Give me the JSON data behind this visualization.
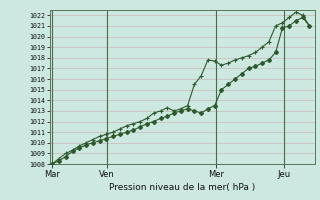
{
  "title": "Pression niveau de la mer( hPa )",
  "bg_color": "#cce8e0",
  "grid_color": "#c8b8b8",
  "line_color": "#2d5a2d",
  "ylim": [
    1008,
    1022.5
  ],
  "yticks": [
    1008,
    1009,
    1010,
    1011,
    1012,
    1013,
    1014,
    1015,
    1016,
    1017,
    1018,
    1019,
    1020,
    1021,
    1022
  ],
  "xtick_labels": [
    "Mar",
    "Ven",
    "Mer",
    "Jeu"
  ],
  "xtick_positions": [
    0.0,
    0.21,
    0.63,
    0.89
  ],
  "vline_positions": [
    0.0,
    0.21,
    0.63,
    0.89
  ],
  "series1_x": [
    0.0,
    0.025,
    0.052,
    0.078,
    0.104,
    0.13,
    0.156,
    0.182,
    0.208,
    0.234,
    0.26,
    0.286,
    0.312,
    0.338,
    0.364,
    0.39,
    0.416,
    0.442,
    0.468,
    0.494,
    0.52,
    0.546,
    0.572,
    0.598,
    0.624,
    0.65,
    0.676,
    0.702,
    0.728,
    0.754,
    0.78,
    0.806,
    0.832,
    0.858,
    0.884,
    0.91,
    0.936,
    0.962,
    0.988
  ],
  "series1_y": [
    1008.0,
    1008.3,
    1008.7,
    1009.2,
    1009.5,
    1009.8,
    1010.0,
    1010.2,
    1010.4,
    1010.6,
    1010.8,
    1011.0,
    1011.2,
    1011.5,
    1011.8,
    1012.0,
    1012.3,
    1012.5,
    1012.8,
    1013.0,
    1013.2,
    1013.0,
    1012.8,
    1013.2,
    1013.5,
    1015.0,
    1015.5,
    1016.0,
    1016.5,
    1017.0,
    1017.2,
    1017.5,
    1017.8,
    1018.5,
    1020.8,
    1021.0,
    1021.5,
    1021.8,
    1021.0
  ],
  "series2_x": [
    0.0,
    0.025,
    0.052,
    0.078,
    0.104,
    0.13,
    0.156,
    0.182,
    0.208,
    0.234,
    0.26,
    0.286,
    0.312,
    0.338,
    0.364,
    0.39,
    0.416,
    0.442,
    0.468,
    0.494,
    0.52,
    0.546,
    0.572,
    0.598,
    0.624,
    0.65,
    0.676,
    0.702,
    0.728,
    0.754,
    0.78,
    0.806,
    0.832,
    0.858,
    0.884,
    0.91,
    0.936,
    0.962,
    0.988
  ],
  "series2_y": [
    1008.0,
    1008.5,
    1009.0,
    1009.3,
    1009.7,
    1010.0,
    1010.3,
    1010.6,
    1010.8,
    1011.0,
    1011.3,
    1011.6,
    1011.8,
    1012.0,
    1012.3,
    1012.8,
    1013.0,
    1013.3,
    1013.0,
    1013.2,
    1013.5,
    1015.5,
    1016.3,
    1017.8,
    1017.7,
    1017.3,
    1017.5,
    1017.8,
    1018.0,
    1018.2,
    1018.5,
    1019.0,
    1019.5,
    1021.0,
    1021.3,
    1021.8,
    1022.3,
    1022.0,
    1021.0
  ],
  "xlim": [
    -0.01,
    1.01
  ]
}
